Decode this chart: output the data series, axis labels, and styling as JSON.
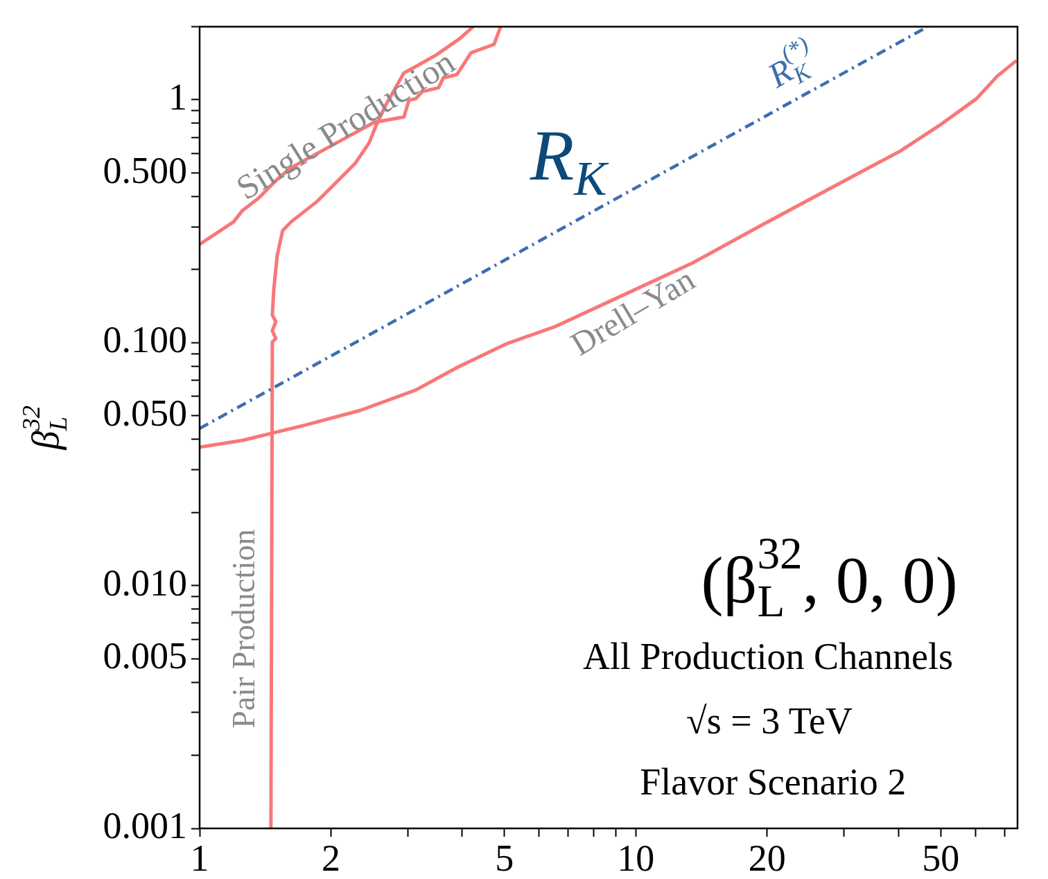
{
  "chart_data": {
    "type": "line",
    "ylabel": "β$_{L}$$^{32}$",
    "log": "xy",
    "grid": false,
    "legend": false,
    "marker": "none",
    "xlim": [
      1,
      75
    ],
    "ylim": [
      0.001,
      2
    ],
    "xticks": [
      1,
      2,
      {
        "value": 3,
        "label": null
      },
      {
        "value": 4,
        "label": null
      },
      5,
      {
        "value": 6,
        "label": null
      },
      {
        "value": 7,
        "label": null
      },
      {
        "value": 8,
        "label": null
      },
      {
        "value": 9,
        "label": null
      },
      10,
      20,
      {
        "value": 30,
        "label": null
      },
      {
        "value": 40,
        "label": null
      },
      50,
      {
        "value": 60,
        "label": null
      },
      {
        "value": 70,
        "label": null
      }
    ],
    "yticks": [
      0.001,
      {
        "value": 0.002,
        "label": null
      },
      {
        "value": 0.003,
        "label": null
      },
      {
        "value": 0.004,
        "label": null
      },
      0.005,
      {
        "value": 0.006,
        "label": null
      },
      {
        "value": 0.007,
        "label": null
      },
      {
        "value": 0.008,
        "label": null
      },
      {
        "value": 0.009,
        "label": null
      },
      {
        "value": 0.01,
        "label": "0.010"
      },
      {
        "value": 0.02,
        "label": null
      },
      {
        "value": 0.03,
        "label": null
      },
      {
        "value": 0.04,
        "label": null
      },
      {
        "value": 0.05,
        "label": "0.050"
      },
      {
        "value": 0.06,
        "label": null
      },
      {
        "value": 0.07,
        "label": null
      },
      {
        "value": 0.08,
        "label": null
      },
      {
        "value": 0.09,
        "label": null
      },
      {
        "value": 0.1,
        "label": "0.100"
      },
      {
        "value": 0.2,
        "label": null
      },
      {
        "value": 0.3,
        "label": null
      },
      {
        "value": 0.4,
        "label": null
      },
      {
        "value": 0.5,
        "label": "0.500"
      },
      {
        "value": 0.6,
        "label": null
      },
      {
        "value": 0.7,
        "label": null
      },
      {
        "value": 0.8,
        "label": null
      },
      {
        "value": 0.9,
        "label": null
      },
      1,
      {
        "value": 2,
        "label": null
      }
    ],
    "series": [
      {
        "color": "#3d6fae",
        "line_style": "dashed",
        "x": [
          1,
          46.7
        ],
        "values": [
          0.0443,
          2
        ]
      },
      {
        "color": "#f87878",
        "line_style": "solid",
        "x": [
          1,
          1.254,
          1.742,
          2.335,
          3.13,
          3.89,
          5.03,
          6.5,
          9.36,
          13.5,
          19.4,
          28.0,
          40.4,
          50.3,
          60.4,
          67.4,
          74.6
        ],
        "values": [
          0.0371,
          0.0396,
          0.0457,
          0.0526,
          0.0638,
          0.0789,
          0.0986,
          0.116,
          0.157,
          0.213,
          0.304,
          0.433,
          0.615,
          0.796,
          1.01,
          1.25,
          1.45
        ]
      },
      {
        "color": "#f87878",
        "line_style": "solid",
        "x": [
          1,
          1.196,
          1.254,
          1.364,
          1.506,
          1.62,
          2.512,
          2.94,
          3.02,
          3.13,
          3.24,
          3.53,
          3.62,
          3.89,
          4.19,
          4.73,
          4.9
        ],
        "values": [
          0.254,
          0.314,
          0.35,
          0.393,
          0.47,
          0.525,
          0.807,
          0.849,
          0.997,
          1.01,
          1.08,
          1.12,
          1.23,
          1.27,
          1.56,
          1.69,
          2.0
        ]
      },
      {
        "color": "#f87878",
        "line_style": "solid",
        "x": [
          1.457,
          1.468,
          1.495,
          1.468,
          1.495,
          1.468,
          1.479,
          1.506,
          1.55,
          1.62,
          1.855,
          2.017,
          2.275,
          2.448,
          2.54,
          2.673,
          2.94,
          3.13,
          3.49,
          3.94,
          4.24
        ],
        "values": [
          0.001,
          0.1007,
          0.104,
          0.112,
          0.122,
          0.13,
          0.165,
          0.228,
          0.289,
          0.314,
          0.38,
          0.441,
          0.548,
          0.665,
          0.786,
          0.953,
          1.29,
          1.37,
          1.53,
          1.78,
          2.0
        ]
      }
    ],
    "annotations": [
      "Single Production",
      "Pair Production",
      "Drell–Yan",
      "R$_{K}$$^{(*)}$",
      "R$_{K}$",
      "(β$_{L}$$^{32}$, 0, 0)",
      "All Production Channels",
      "√s = 3 TeV",
      "Flavor Scenario 2"
    ]
  }
}
